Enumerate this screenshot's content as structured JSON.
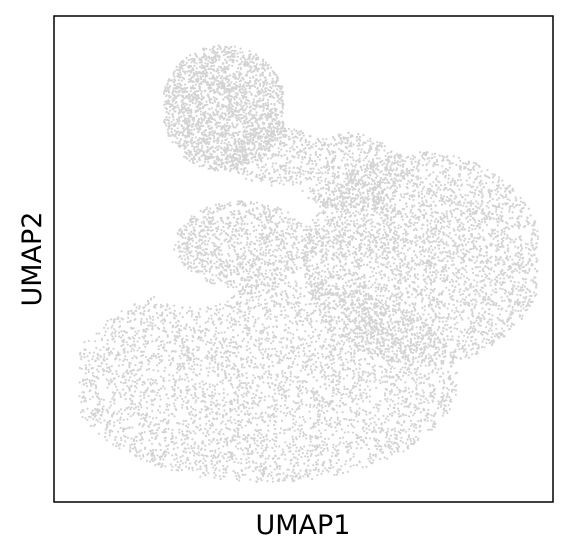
{
  "chart_data": {
    "type": "scatter",
    "title": "",
    "xlabel": "UMAP1",
    "ylabel": "UMAP2",
    "xlim": [
      0,
      100
    ],
    "ylim": [
      0,
      100
    ],
    "xticks": [],
    "yticks": [],
    "grid": false,
    "legend": "none",
    "point_color": "#d3d3d3",
    "series": [
      {
        "regions": [
          {
            "shape": "upper-lobe",
            "x": [
              22,
              46
            ],
            "y": [
              68,
              94
            ],
            "approx_points": 2100
          },
          {
            "shape": "neck-connector",
            "x": [
              33,
              72
            ],
            "y": [
              60,
              80
            ],
            "approx_points": 900
          },
          {
            "shape": "inner-arm",
            "x": [
              24,
              52
            ],
            "y": [
              43,
              62
            ],
            "approx_points": 1000
          },
          {
            "shape": "right-body",
            "x": [
              48,
              97
            ],
            "y": [
              26,
              72
            ],
            "approx_points": 3600
          },
          {
            "shape": "lower-bowl",
            "x": [
              5,
              82
            ],
            "y": [
              4,
              46
            ],
            "approx_points": 4200
          }
        ]
      }
    ]
  }
}
